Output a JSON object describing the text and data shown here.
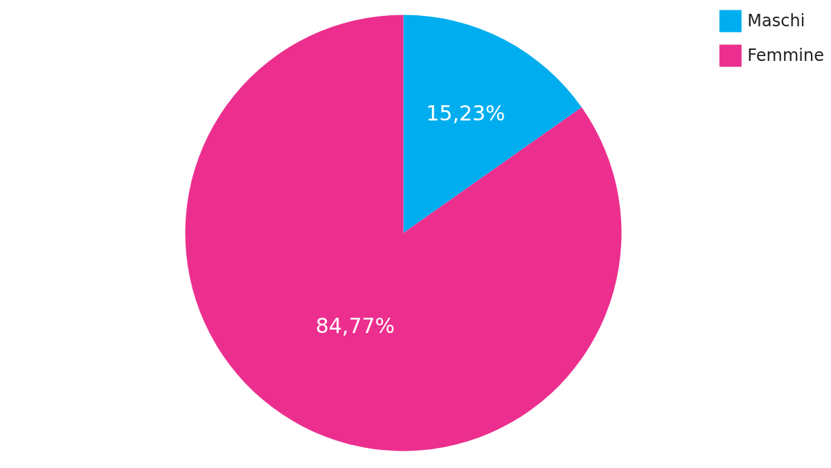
{
  "chart_data": {
    "type": "pie",
    "categories": [
      "Maschi",
      "Femmine"
    ],
    "values": [
      15.23,
      84.77
    ],
    "colors": [
      "#00aeef",
      "#ec2f8e"
    ],
    "value_labels": [
      "15,23%",
      "84,77%"
    ],
    "legend": "top right"
  }
}
